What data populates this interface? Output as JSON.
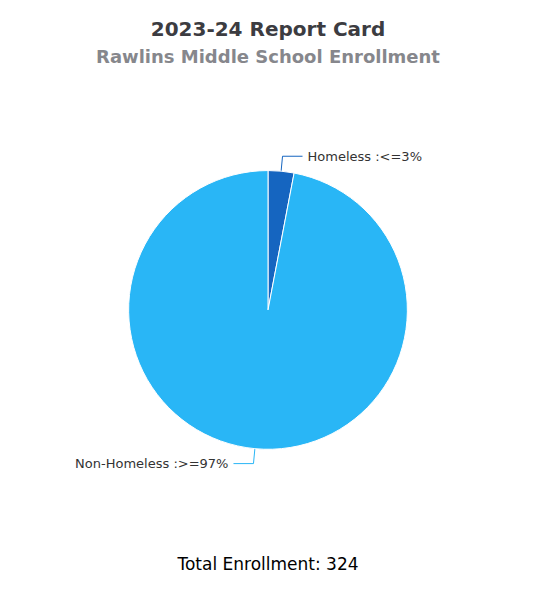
{
  "chart_data": {
    "type": "pie",
    "title": "2023-24 Report Card",
    "subtitle": "Rawlins Middle School Enrollment",
    "categories": [
      "Homeless :<=3%",
      "Non-Homeless :>=97%"
    ],
    "values": [
      3,
      97
    ],
    "colors": [
      "#1565c0",
      "#29b6f6"
    ],
    "annotations": [
      "Total Enrollment: 324"
    ]
  }
}
